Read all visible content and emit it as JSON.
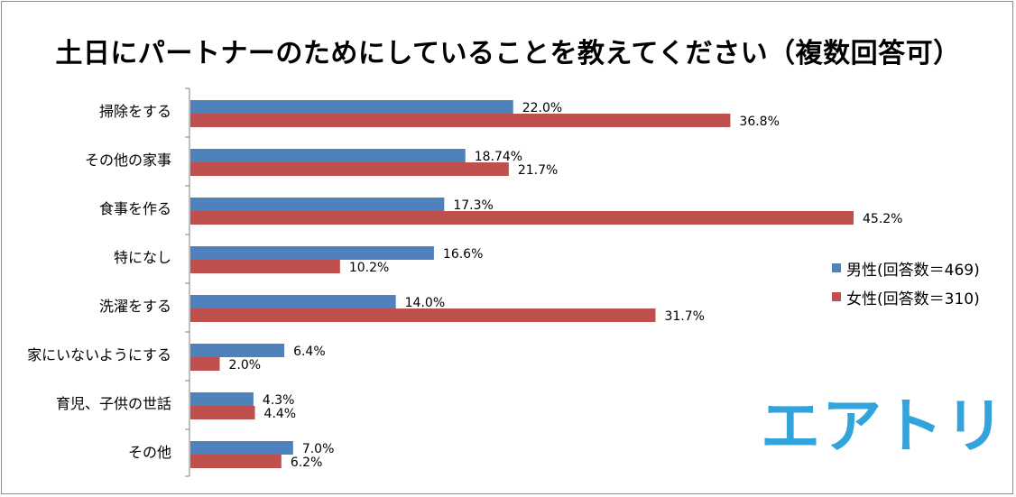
{
  "colors": {
    "male": "#4f81bd",
    "female": "#c0504d",
    "axis": "#808080",
    "logo": "#33a3dc"
  },
  "chart_data": {
    "type": "bar",
    "orientation": "horizontal",
    "title": "土日にパートナーのためにしていることを教えてください（複数回答可）",
    "categories": [
      "掃除をする",
      "その他の家事",
      "食事を作る",
      "特になし",
      "洗濯をする",
      "家にいないようにする",
      "育児、子供の世話",
      "その他"
    ],
    "series": [
      {
        "name": "男性(回答数＝469)",
        "values": [
          22.0,
          18.74,
          17.3,
          16.6,
          14.0,
          6.4,
          4.3,
          7.0
        ],
        "labels": [
          "22.0%",
          "18.74%",
          "17.3%",
          "16.6%",
          "14.0%",
          "6.4%",
          "4.3%",
          "7.0%"
        ]
      },
      {
        "name": "女性(回答数＝310)",
        "values": [
          36.8,
          21.7,
          45.2,
          10.2,
          31.7,
          2.0,
          4.4,
          6.2
        ],
        "labels": [
          "36.8%",
          "21.7%",
          "45.2%",
          "10.2%",
          "31.7%",
          "2.0%",
          "4.4%",
          "6.2%"
        ]
      }
    ],
    "xlim": [
      0,
      45.2
    ],
    "grid": false,
    "legend_position": "right"
  },
  "logo": {
    "text": "エアトリ"
  }
}
